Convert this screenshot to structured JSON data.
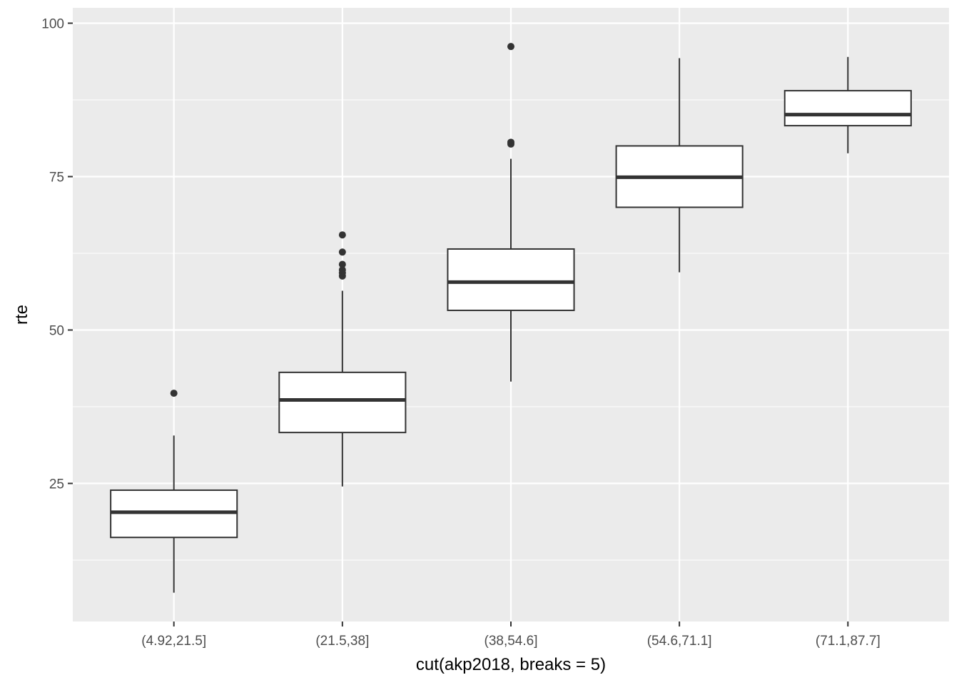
{
  "chart_data": {
    "type": "boxplot",
    "xlabel": "cut(akp2018, breaks = 5)",
    "ylabel": "rte",
    "ylim": [
      2.5,
      102.5
    ],
    "yticks": [
      25,
      50,
      75,
      100
    ],
    "yminor": [
      12.5,
      37.5,
      62.5,
      87.5
    ],
    "categories": [
      "(4.92,21.5]",
      "(21.5,38]",
      "(38,54.6]",
      "(54.6,71.1]",
      "(71.1,87.7]"
    ],
    "boxes": [
      {
        "category": "(4.92,21.5]",
        "whisker_low": 7.2,
        "q1": 16.2,
        "median": 20.3,
        "q3": 23.9,
        "whisker_high": 32.8,
        "outliers": [
          39.7
        ]
      },
      {
        "category": "(21.5,38]",
        "whisker_low": 24.5,
        "q1": 33.3,
        "median": 38.6,
        "q3": 43.1,
        "whisker_high": 56.4,
        "outliers": [
          58.8,
          59.3,
          59.8,
          60.7,
          62.7,
          65.5
        ]
      },
      {
        "category": "(38,54.6]",
        "whisker_low": 41.6,
        "q1": 53.2,
        "median": 57.8,
        "q3": 63.2,
        "whisker_high": 77.9,
        "outliers": [
          80.3,
          80.6,
          96.2
        ]
      },
      {
        "category": "(54.6,71.1]",
        "whisker_low": 59.4,
        "q1": 70.0,
        "median": 74.9,
        "q3": 80.0,
        "whisker_high": 94.3,
        "outliers": []
      },
      {
        "category": "(71.1,87.7]",
        "whisker_low": 78.8,
        "q1": 83.3,
        "median": 85.1,
        "q3": 89.0,
        "whisker_high": 94.5,
        "outliers": []
      }
    ],
    "grid": true,
    "legend": "none",
    "colors": {
      "panel_bg": "#ebebeb",
      "grid": "#ffffff",
      "box_fill": "#ffffff",
      "box_stroke": "#333333",
      "outlier": "#333333",
      "tick_text": "#4d4d4d",
      "tick_mark": "#333333",
      "axis_title": "#000000"
    }
  }
}
